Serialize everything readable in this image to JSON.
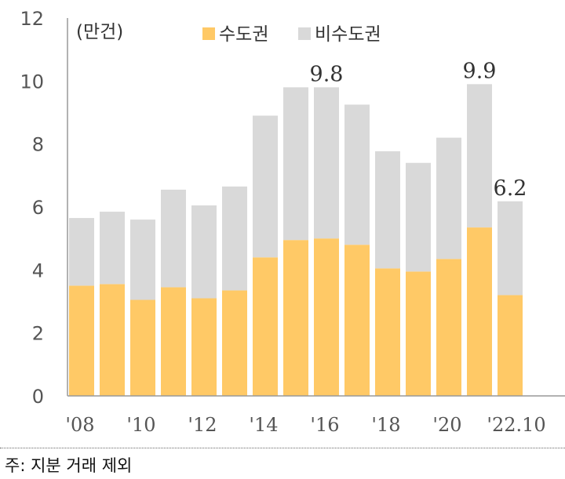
{
  "chart_data": {
    "type": "bar",
    "stacked": true,
    "unit_label": "(만건)",
    "categories": [
      "'08",
      "'09",
      "'10",
      "'11",
      "'12",
      "'13",
      "'14",
      "'15",
      "'16",
      "'17",
      "'18",
      "'19",
      "'20",
      "'21",
      "'22.10"
    ],
    "x_tick_labels": [
      "'08",
      "",
      "'10",
      "",
      "'12",
      "",
      "'14",
      "",
      "'16",
      "",
      "'18",
      "",
      "'20",
      "",
      "'22.10"
    ],
    "series": [
      {
        "name": "수도권",
        "color": "#FFC966",
        "values": [
          3.5,
          3.55,
          3.05,
          3.45,
          3.1,
          3.35,
          4.4,
          4.95,
          5.0,
          4.8,
          4.05,
          3.95,
          4.35,
          5.35,
          3.2
        ]
      },
      {
        "name": "비수도권",
        "color": "#D9D9D9",
        "values": [
          2.15,
          2.3,
          2.55,
          3.1,
          2.95,
          3.3,
          4.5,
          4.85,
          4.8,
          4.45,
          3.72,
          3.45,
          3.85,
          4.55,
          2.98
        ]
      }
    ],
    "data_labels": [
      {
        "category": "'16",
        "text": "9.8"
      },
      {
        "category": "'21",
        "text": "9.9"
      },
      {
        "category": "'22.10",
        "text": "6.2"
      }
    ],
    "ylim": [
      0,
      12
    ],
    "yticks": [
      0,
      2,
      4,
      6,
      8,
      10,
      12
    ],
    "grid": false,
    "legend_position": "top"
  },
  "note": "주: 지분 거래 제외"
}
